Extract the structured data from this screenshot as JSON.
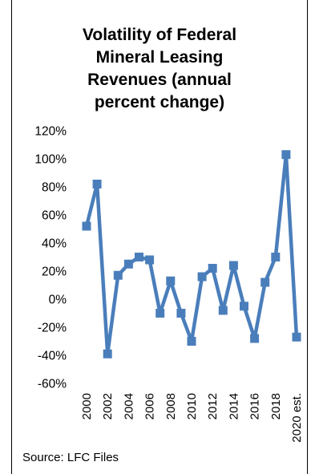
{
  "chart_data": {
    "type": "line",
    "title_lines": [
      "Volatility of Federal",
      "Mineral Leasing",
      "Revenues (annual",
      "percent change)"
    ],
    "title": "Volatility of Federal Mineral Leasing Revenues (annual percent change)",
    "xlabel": "",
    "ylabel": "",
    "categories": [
      "2000",
      "2001",
      "2002",
      "2003",
      "2004",
      "2005",
      "2006",
      "2007",
      "2008",
      "2009",
      "2010",
      "2011",
      "2012",
      "2013",
      "2014",
      "2015",
      "2016",
      "2017",
      "2018",
      "2019",
      "2020 est."
    ],
    "x_tick_labels": [
      "2000",
      "2002",
      "2004",
      "2006",
      "2008",
      "2010",
      "2012",
      "2014",
      "2016",
      "2018",
      "2020 est."
    ],
    "y_tick_labels": [
      "120%",
      "100%",
      "80%",
      "60%",
      "40%",
      "20%",
      "0%",
      "-20%",
      "-40%",
      "-60%"
    ],
    "series": [
      {
        "values": [
          52,
          82,
          -39,
          17,
          25,
          30,
          28,
          -10,
          13,
          -10,
          -30,
          16,
          22,
          -8,
          24,
          -5,
          -28,
          12,
          30,
          103,
          -27
        ]
      }
    ],
    "ylim": [
      -60,
      120
    ],
    "grid": false,
    "legend": "none",
    "line_color": "#4a7ebb",
    "marker": "square"
  },
  "source": "Source: LFC Files"
}
